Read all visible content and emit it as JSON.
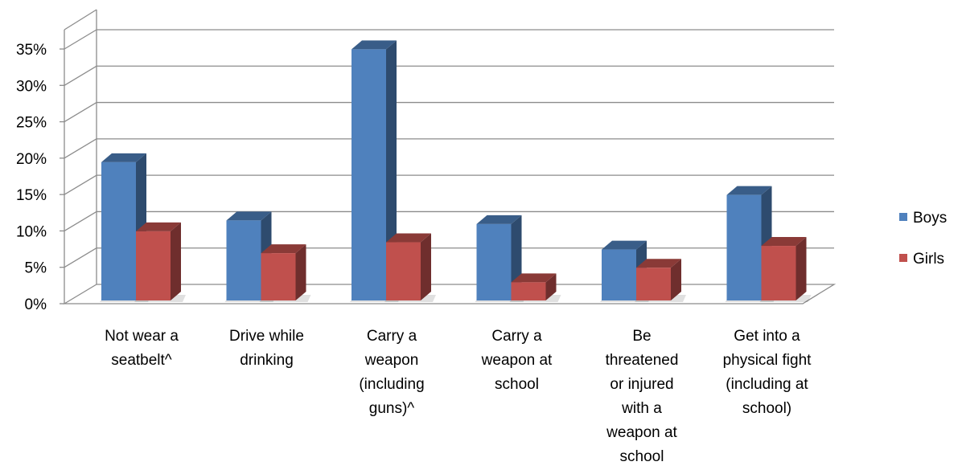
{
  "chart_data": {
    "type": "bar",
    "style": "3d-clustered-column",
    "categories": [
      [
        "Not wear a",
        "seatbelt^"
      ],
      [
        "Drive while",
        "drinking"
      ],
      [
        "Carry a",
        "weapon",
        "(including",
        "guns)^"
      ],
      [
        "Carry a",
        "weapon at",
        "school"
      ],
      [
        "Be",
        "threatened",
        "or injured",
        "with a",
        "weapon at",
        "school"
      ],
      [
        "Get into a",
        "physical fight",
        "(including at",
        "school)"
      ]
    ],
    "series": [
      {
        "name": "Boys",
        "values": [
          19,
          11,
          34.5,
          10.5,
          7,
          14.5
        ],
        "color": "#4F81BD"
      },
      {
        "name": "Girls",
        "values": [
          9.5,
          6.5,
          8,
          2.5,
          4.5,
          7.5
        ],
        "color": "#C0504D"
      }
    ],
    "yticks": [
      "0%",
      "5%",
      "10%",
      "15%",
      "20%",
      "25%",
      "30%",
      "35%"
    ],
    "ylim": [
      0,
      35
    ],
    "grid": true,
    "legend_position": "right"
  }
}
